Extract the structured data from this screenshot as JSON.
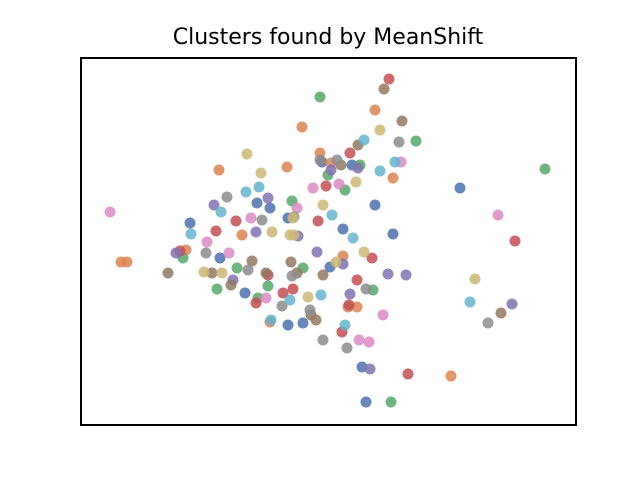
{
  "chart_data": {
    "type": "scatter",
    "title": "Clusters found by MeanShift",
    "xlim": [
      0,
      495
    ],
    "ylim": [
      0,
      367
    ],
    "series": [
      {
        "color": "#4c72b0",
        "x": [
          109,
          139,
          164,
          176,
          189,
          207,
          222,
          249,
          262,
          271,
          294,
          312,
          379,
          285,
          281,
          241,
          207
        ],
        "y": [
          202,
          167,
          132,
          222,
          217,
          100,
          102,
          158,
          196,
          260,
          220,
          191,
          237,
          23,
          58,
          263,
          207
        ]
      },
      {
        "color": "#dd8452",
        "x": [
          40,
          46,
          105,
          138,
          161,
          189,
          206,
          221,
          239,
          250,
          262,
          267,
          276,
          294,
          312,
          370
        ],
        "y": [
          163,
          163,
          175,
          255,
          190,
          103,
          258,
          298,
          272,
          262,
          169,
          118,
          118,
          315,
          247,
          49
        ]
      },
      {
        "color": "#55a868",
        "x": [
          102,
          136,
          156,
          187,
          177,
          211,
          222,
          239,
          247,
          264,
          279,
          292,
          335,
          464,
          310
        ],
        "y": [
          167,
          136,
          157,
          139,
          127,
          224,
          157,
          328,
          250,
          235,
          260,
          135,
          284,
          256,
          23
        ]
      },
      {
        "color": "#c44e52",
        "x": [
          99,
          135,
          155,
          175,
          187,
          202,
          212,
          237,
          245,
          269,
          291,
          308,
          261,
          276,
          327,
          434,
          268
        ],
        "y": [
          174,
          194,
          204,
          122,
          150,
          132,
          136,
          204,
          239,
          272,
          167,
          346,
          93,
          145,
          51,
          184,
          120
        ]
      },
      {
        "color": "#8172b3",
        "x": [
          95,
          133,
          152,
          175,
          187,
          217,
          236,
          262,
          269,
          277,
          307,
          325,
          289,
          431,
          250
        ],
        "y": [
          172,
          220,
          145,
          193,
          227,
          189,
          173,
          161,
          131,
          257,
          151,
          150,
          56,
          121,
          255
        ]
      },
      {
        "color": "#937860",
        "x": [
          87,
          131,
          150,
          171,
          185,
          210,
          216,
          230,
          235,
          260,
          277,
          303,
          321,
          420,
          242
        ],
        "y": [
          152,
          152,
          140,
          164,
          152,
          163,
          152,
          110,
          105,
          260,
          280,
          336,
          304,
          112,
          150
        ]
      },
      {
        "color": "#da8bc3",
        "x": [
          29,
          126,
          148,
          170,
          185,
          216,
          232,
          258,
          278,
          302,
          320,
          417,
          288
        ],
        "y": [
          213,
          183,
          172,
          207,
          127,
          217,
          237,
          241,
          85,
          110,
          263,
          210,
          83
        ]
      },
      {
        "color": "#8c8c8c",
        "x": [
          125,
          146,
          181,
          201,
          211,
          213,
          229,
          242,
          256,
          266,
          285,
          318,
          407,
          167,
          239
        ],
        "y": [
          172,
          228,
          205,
          119,
          149,
          208,
          115,
          85,
          265,
          77,
          136,
          283,
          102,
          155,
          265
        ]
      },
      {
        "color": "#ccb974",
        "x": [
          123,
          141,
          166,
          180,
          191,
          209,
          212,
          227,
          242,
          255,
          275,
          283,
          299,
          394,
          213
        ],
        "y": [
          153,
          152,
          271,
          252,
          193,
          190,
          207,
          128,
          220,
          163,
          243,
          173,
          295,
          146,
          190
        ]
      },
      {
        "color": "#64b5cd",
        "x": [
          110,
          140,
          165,
          178,
          209,
          240,
          251,
          272,
          283,
          299,
          314,
          389,
          264,
          190
        ],
        "y": [
          191,
          213,
          233,
          238,
          125,
          130,
          210,
          187,
          285,
          254,
          263,
          123,
          100,
          105
        ]
      }
    ]
  }
}
